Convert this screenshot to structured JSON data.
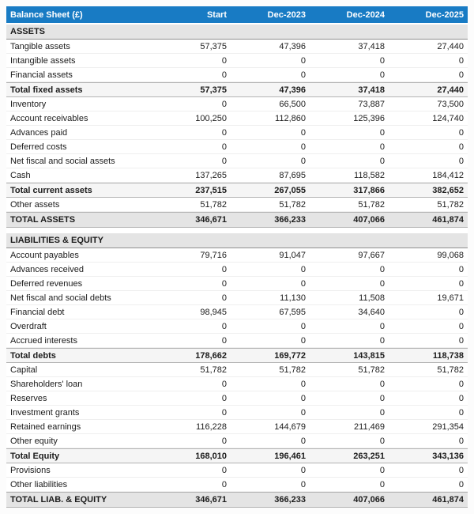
{
  "header": {
    "title": "Balance Sheet (£)",
    "columns": [
      "Start",
      "Dec-2023",
      "Dec-2024",
      "Dec-2025"
    ]
  },
  "colors": {
    "header_bg": "#187bc4",
    "header_text": "#ffffff",
    "section_bg": "#e4e4e4",
    "subtotal_bg": "#f5f5f5",
    "grand_total_bg": "#e4e4e4"
  },
  "table": {
    "sections": [
      {
        "label": "ASSETS",
        "rows": [
          {
            "label": "Tangible assets",
            "style": "normal",
            "values": [
              "57,375",
              "47,396",
              "37,418",
              "27,440"
            ]
          },
          {
            "label": "Intangible assets",
            "style": "normal",
            "values": [
              "0",
              "0",
              "0",
              "0"
            ]
          },
          {
            "label": "Financial assets",
            "style": "normal",
            "values": [
              "0",
              "0",
              "0",
              "0"
            ]
          },
          {
            "label": "Total fixed assets",
            "style": "subtotal",
            "values": [
              "57,375",
              "47,396",
              "37,418",
              "27,440"
            ]
          },
          {
            "label": "Inventory",
            "style": "normal",
            "values": [
              "0",
              "66,500",
              "73,887",
              "73,500"
            ]
          },
          {
            "label": "Account receivables",
            "style": "normal",
            "values": [
              "100,250",
              "112,860",
              "125,396",
              "124,740"
            ]
          },
          {
            "label": "Advances paid",
            "style": "normal",
            "values": [
              "0",
              "0",
              "0",
              "0"
            ]
          },
          {
            "label": "Deferred costs",
            "style": "normal",
            "values": [
              "0",
              "0",
              "0",
              "0"
            ]
          },
          {
            "label": "Net fiscal and social assets",
            "style": "normal",
            "values": [
              "0",
              "0",
              "0",
              "0"
            ]
          },
          {
            "label": "Cash",
            "style": "normal",
            "values": [
              "137,265",
              "87,695",
              "118,582",
              "184,412"
            ]
          },
          {
            "label": "Total current assets",
            "style": "subtotal",
            "values": [
              "237,515",
              "267,055",
              "317,866",
              "382,652"
            ]
          },
          {
            "label": "Other assets",
            "style": "normal",
            "values": [
              "51,782",
              "51,782",
              "51,782",
              "51,782"
            ]
          },
          {
            "label": "TOTAL ASSETS",
            "style": "grand",
            "values": [
              "346,671",
              "366,233",
              "407,066",
              "461,874"
            ]
          }
        ]
      },
      {
        "label": "LIABILITIES & EQUITY",
        "rows": [
          {
            "label": "Account payables",
            "style": "normal",
            "values": [
              "79,716",
              "91,047",
              "97,667",
              "99,068"
            ]
          },
          {
            "label": "Advances received",
            "style": "normal",
            "values": [
              "0",
              "0",
              "0",
              "0"
            ]
          },
          {
            "label": "Deferred revenues",
            "style": "normal",
            "values": [
              "0",
              "0",
              "0",
              "0"
            ]
          },
          {
            "label": "Net fiscal and social debts",
            "style": "normal",
            "values": [
              "0",
              "11,130",
              "11,508",
              "19,671"
            ]
          },
          {
            "label": "Financial debt",
            "style": "normal",
            "values": [
              "98,945",
              "67,595",
              "34,640",
              "0"
            ]
          },
          {
            "label": "Overdraft",
            "style": "normal",
            "values": [
              "0",
              "0",
              "0",
              "0"
            ]
          },
          {
            "label": "Accrued interests",
            "style": "normal",
            "values": [
              "0",
              "0",
              "0",
              "0"
            ]
          },
          {
            "label": "Total debts",
            "style": "subtotal",
            "values": [
              "178,662",
              "169,772",
              "143,815",
              "118,738"
            ]
          },
          {
            "label": "Capital",
            "style": "normal",
            "values": [
              "51,782",
              "51,782",
              "51,782",
              "51,782"
            ]
          },
          {
            "label": "Shareholders' loan",
            "style": "normal",
            "values": [
              "0",
              "0",
              "0",
              "0"
            ]
          },
          {
            "label": "Reserves",
            "style": "normal",
            "values": [
              "0",
              "0",
              "0",
              "0"
            ]
          },
          {
            "label": "Investment grants",
            "style": "normal",
            "values": [
              "0",
              "0",
              "0",
              "0"
            ]
          },
          {
            "label": "Retained earnings",
            "style": "normal",
            "values": [
              "116,228",
              "144,679",
              "211,469",
              "291,354"
            ]
          },
          {
            "label": "Other equity",
            "style": "normal",
            "values": [
              "0",
              "0",
              "0",
              "0"
            ]
          },
          {
            "label": "Total Equity",
            "style": "subtotal",
            "values": [
              "168,010",
              "196,461",
              "263,251",
              "343,136"
            ]
          },
          {
            "label": "Provisions",
            "style": "normal",
            "values": [
              "0",
              "0",
              "0",
              "0"
            ]
          },
          {
            "label": "Other liabilities",
            "style": "normal",
            "values": [
              "0",
              "0",
              "0",
              "0"
            ]
          },
          {
            "label": "TOTAL LIAB. & EQUITY",
            "style": "grand",
            "values": [
              "346,671",
              "366,233",
              "407,066",
              "461,874"
            ]
          }
        ]
      }
    ]
  }
}
